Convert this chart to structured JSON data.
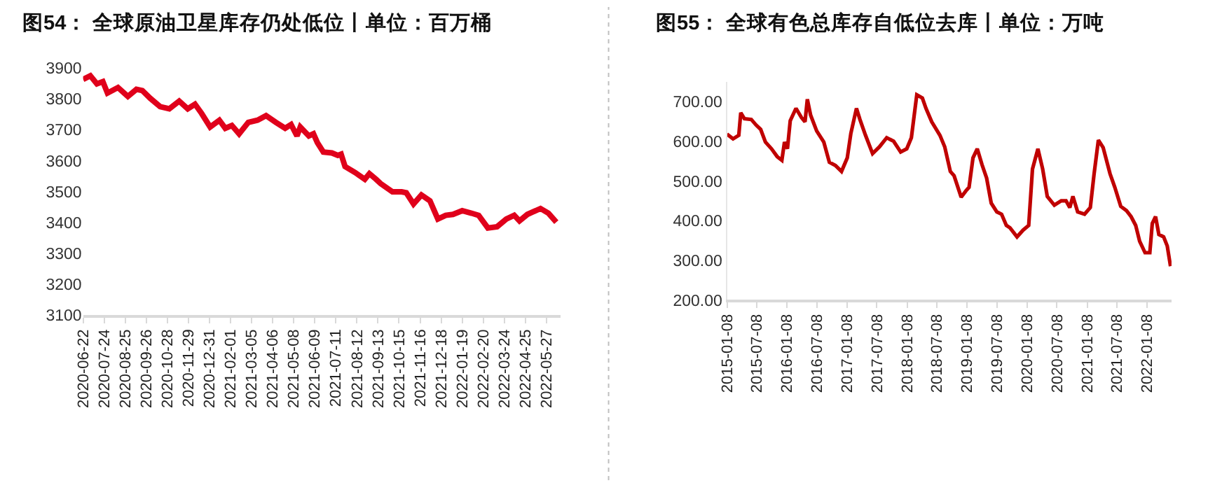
{
  "chart_data": [
    {
      "type": "line",
      "title": "图54： 全球原油卫星库存仍处低位丨单位：百万桶",
      "color": "#e0001b",
      "marker": "none",
      "line_style": "solid",
      "xlim": [
        "2020-06-22",
        "2022-06-17"
      ],
      "ylim": [
        3100,
        3900
      ],
      "yticks": [
        3100,
        3200,
        3300,
        3400,
        3500,
        3600,
        3700,
        3800,
        3900
      ],
      "xticks": [
        "2020-06-22",
        "2020-07-24",
        "2020-08-25",
        "2020-09-26",
        "2020-10-28",
        "2020-11-29",
        "2020-12-31",
        "2021-02-01",
        "2021-03-05",
        "2021-04-06",
        "2021-05-08",
        "2021-06-09",
        "2021-07-11",
        "2021-08-12",
        "2021-09-13",
        "2021-10-15",
        "2021-11-16",
        "2021-12-18",
        "2022-01-19",
        "2022-02-20",
        "2022-03-24",
        "2022-04-25",
        "2022-05-27"
      ],
      "x": [
        "2020-06-22",
        "2020-07-03",
        "2020-07-13",
        "2020-07-22",
        "2020-07-29",
        "2020-08-14",
        "2020-08-29",
        "2020-09-11",
        "2020-09-20",
        "2020-10-02",
        "2020-10-17",
        "2020-10-31",
        "2020-11-15",
        "2020-11-28",
        "2020-12-09",
        "2020-12-19",
        "2021-01-01",
        "2021-01-15",
        "2021-01-24",
        "2021-02-03",
        "2021-02-14",
        "2021-02-28",
        "2021-03-14",
        "2021-03-27",
        "2021-04-11",
        "2021-04-25",
        "2021-05-04",
        "2021-05-13",
        "2021-05-18",
        "2021-05-31",
        "2021-06-07",
        "2021-06-13",
        "2021-06-22",
        "2021-07-05",
        "2021-07-14",
        "2021-07-19",
        "2021-07-25",
        "2021-08-09",
        "2021-08-24",
        "2021-08-31",
        "2021-09-10",
        "2021-09-17",
        "2021-10-05",
        "2021-10-19",
        "2021-10-26",
        "2021-11-06",
        "2021-11-18",
        "2021-12-01",
        "2021-12-13",
        "2021-12-25",
        "2022-01-05",
        "2022-01-19",
        "2022-02-02",
        "2022-02-13",
        "2022-02-27",
        "2022-03-13",
        "2022-03-27",
        "2022-04-08",
        "2022-04-16",
        "2022-04-28",
        "2022-05-18",
        "2022-05-30",
        "2022-06-11"
      ],
      "values": [
        3863,
        3875,
        3849,
        3856,
        3819,
        3837,
        3808,
        3831,
        3827,
        3802,
        3775,
        3768,
        3793,
        3768,
        3783,
        3753,
        3709,
        3731,
        3705,
        3714,
        3687,
        3724,
        3731,
        3746,
        3724,
        3705,
        3717,
        3680,
        3709,
        3680,
        3687,
        3658,
        3628,
        3625,
        3617,
        3621,
        3581,
        3562,
        3540,
        3558,
        3540,
        3526,
        3499,
        3499,
        3496,
        3460,
        3489,
        3470,
        3411,
        3423,
        3426,
        3438,
        3430,
        3423,
        3382,
        3386,
        3411,
        3423,
        3405,
        3426,
        3445,
        3430,
        3401
      ]
    },
    {
      "type": "line",
      "title": "图55： 全球有色总库存自低位去库丨单位：万吨",
      "color": "#c00000",
      "marker": "none",
      "line_style": "solid",
      "xlim": [
        "2015-01-08",
        "2022-06-05"
      ],
      "ylim": [
        200,
        750
      ],
      "yticks": [
        {
          "value": 200,
          "label": "200.00"
        },
        {
          "value": 300,
          "label": "300.00"
        },
        {
          "value": 400,
          "label": "400.00"
        },
        {
          "value": 500,
          "label": "500.00"
        },
        {
          "value": 600,
          "label": "600.00"
        },
        {
          "value": 700,
          "label": "700.00"
        }
      ],
      "xticks": [
        "2015-01-08",
        "2015-07-08",
        "2016-01-08",
        "2016-07-08",
        "2017-01-08",
        "2017-07-08",
        "2018-01-08",
        "2018-07-08",
        "2019-01-08",
        "2019-07-08",
        "2020-01-08",
        "2020-07-08",
        "2021-01-08",
        "2021-07-08",
        "2022-01-08"
      ],
      "x": [
        "2015-01-08",
        "2015-02-14",
        "2015-03-21",
        "2015-04-02",
        "2015-04-24",
        "2015-06-05",
        "2015-07-04",
        "2015-08-01",
        "2015-08-30",
        "2015-10-06",
        "2015-11-10",
        "2015-12-08",
        "2015-12-24",
        "2016-01-11",
        "2016-01-28",
        "2016-03-03",
        "2016-04-05",
        "2016-04-27",
        "2016-05-11",
        "2016-05-31",
        "2016-07-07",
        "2016-08-19",
        "2016-09-22",
        "2016-10-29",
        "2016-12-05",
        "2017-01-09",
        "2017-01-31",
        "2017-03-06",
        "2017-03-27",
        "2017-04-30",
        "2017-06-12",
        "2017-07-24",
        "2017-09-06",
        "2017-10-18",
        "2017-11-30",
        "2018-01-06",
        "2018-02-03",
        "2018-03-08",
        "2018-04-11",
        "2018-05-03",
        "2018-06-07",
        "2018-07-27",
        "2018-08-25",
        "2018-09-28",
        "2018-10-21",
        "2018-12-03",
        "2019-01-01",
        "2019-01-20",
        "2019-02-13",
        "2019-03-11",
        "2019-04-09",
        "2019-05-07",
        "2019-06-04",
        "2019-07-08",
        "2019-08-06",
        "2019-09-04",
        "2019-09-26",
        "2019-11-08",
        "2019-12-15",
        "2020-01-18",
        "2020-02-10",
        "2020-03-14",
        "2020-04-12",
        "2020-05-10",
        "2020-06-22",
        "2020-08-03",
        "2020-09-01",
        "2020-09-24",
        "2020-10-13",
        "2020-11-11",
        "2020-12-23",
        "2021-01-27",
        "2021-02-19",
        "2021-03-17",
        "2021-04-15",
        "2021-05-27",
        "2021-06-25",
        "2021-07-31",
        "2021-09-04",
        "2021-10-02",
        "2021-10-30",
        "2021-11-23",
        "2021-12-26",
        "2022-01-24",
        "2022-02-08",
        "2022-02-28",
        "2022-03-20",
        "2022-04-18",
        "2022-05-10",
        "2022-05-30"
      ],
      "values": [
        618,
        606,
        615,
        672,
        657,
        655,
        641,
        630,
        598,
        581,
        561,
        552,
        598,
        581,
        652,
        683,
        660,
        649,
        706,
        666,
        626,
        598,
        547,
        539,
        524,
        558,
        620,
        683,
        655,
        615,
        569,
        586,
        609,
        600,
        573,
        581,
        609,
        717,
        709,
        683,
        649,
        615,
        586,
        524,
        513,
        459,
        475,
        484,
        558,
        581,
        541,
        507,
        444,
        422,
        416,
        388,
        382,
        359,
        376,
        388,
        530,
        581,
        530,
        461,
        439,
        450,
        450,
        433,
        461,
        422,
        416,
        433,
        518,
        603,
        584,
        518,
        484,
        436,
        425,
        410,
        388,
        348,
        319,
        319,
        393,
        410,
        365,
        359,
        336,
        285
      ]
    }
  ]
}
